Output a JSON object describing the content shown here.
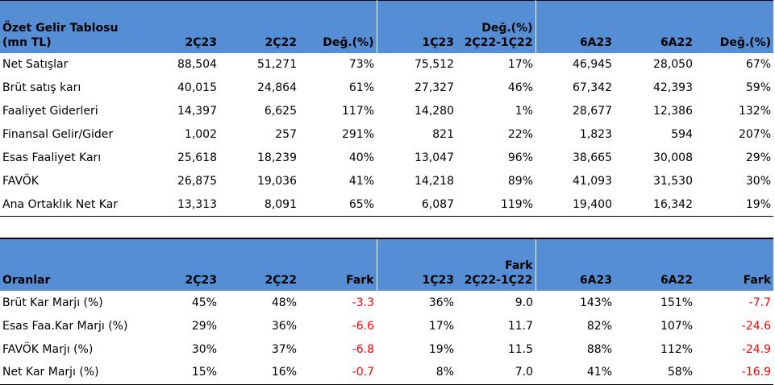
{
  "income": {
    "title_line1": "Özet Gelir Tablosu",
    "title_line2": "(mn TL)",
    "headers": [
      "2Ç23",
      "2Ç22",
      "Değ.(%)",
      "1Ç23",
      "6A23",
      "6A22",
      "Değ.(%)"
    ],
    "diff_header_line1": "Değ.(%)",
    "diff_header_line2": "2Ç22-1Ç22",
    "rows": [
      {
        "label": "Net Satışlar",
        "v": [
          "88,504",
          "51,271",
          "73%",
          "75,512",
          "17%",
          "46,945",
          "28,050",
          "67%"
        ]
      },
      {
        "label": "Brüt satış karı",
        "v": [
          "40,015",
          "24,864",
          "61%",
          "27,327",
          "46%",
          "67,342",
          "42,393",
          "59%"
        ]
      },
      {
        "label": "Faaliyet Giderleri",
        "v": [
          "14,397",
          "6,625",
          "117%",
          "14,280",
          "1%",
          "28,677",
          "12,386",
          "132%"
        ]
      },
      {
        "label": "Finansal Gelir/Gider",
        "v": [
          "1,002",
          "257",
          "291%",
          "821",
          "22%",
          "1,823",
          "594",
          "207%"
        ]
      },
      {
        "label": "Esas Faaliyet Karı",
        "v": [
          "25,618",
          "18,239",
          "40%",
          "13,047",
          "96%",
          "38,665",
          "30,008",
          "29%"
        ]
      },
      {
        "label": "FAVÖK",
        "v": [
          "26,875",
          "19,036",
          "41%",
          "14,218",
          "89%",
          "41,093",
          "31,530",
          "30%"
        ]
      },
      {
        "label": "Ana Ortaklık Net Kar",
        "v": [
          "13,313",
          "8,091",
          "65%",
          "6,087",
          "119%",
          "19,400",
          "16,342",
          "19%"
        ]
      }
    ]
  },
  "ratios": {
    "title": "Oranlar",
    "headers": [
      "2Ç23",
      "2Ç22",
      "Fark",
      "1Ç23",
      "6A23",
      "6A22",
      "Fark"
    ],
    "diff_header_line1": "Fark",
    "diff_header_line2": "2Ç22-1Ç22",
    "rows": [
      {
        "label": "Brüt Kar Marjı (%)",
        "v": [
          "45%",
          "48%",
          "-3.3",
          "36%",
          "9.0",
          "143%",
          "151%",
          "-7.7"
        ]
      },
      {
        "label": "Esas Faa.Kar Marjı (%)",
        "v": [
          "29%",
          "36%",
          "-6.6",
          "17%",
          "11.7",
          "82%",
          "107%",
          "-24.6"
        ]
      },
      {
        "label": "FAVÖK Marjı (%)",
        "v": [
          "30%",
          "37%",
          "-6.8",
          "19%",
          "11.5",
          "88%",
          "112%",
          "-24.9"
        ]
      },
      {
        "label": "Net Kar Marjı (%)",
        "v": [
          "15%",
          "16%",
          "-0.7",
          "8%",
          "7.0",
          "41%",
          "58%",
          "-16.9"
        ]
      }
    ]
  },
  "colors": {
    "header_bg": "#558ed5",
    "negative": "#ff0000"
  }
}
